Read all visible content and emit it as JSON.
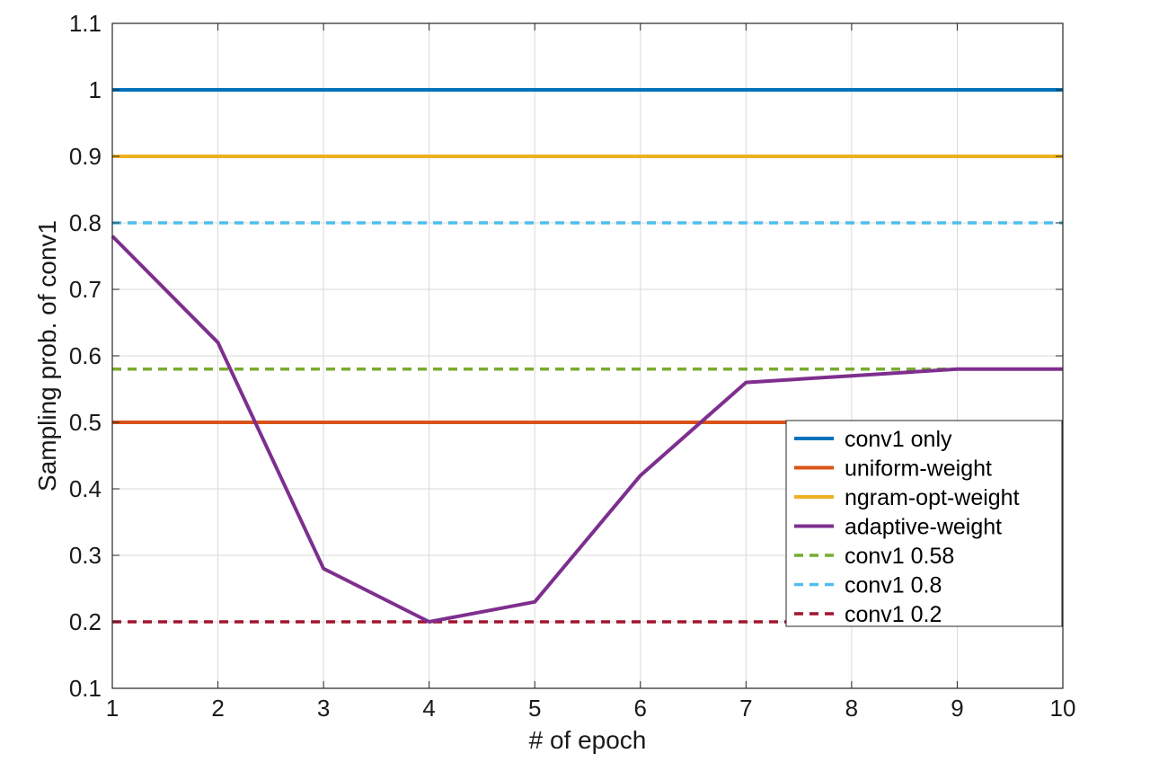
{
  "chart_data": {
    "type": "line",
    "xlabel": "# of epoch",
    "ylabel": "Sampling prob. of conv1",
    "xlim": [
      1,
      10
    ],
    "ylim": [
      0.1,
      1.1
    ],
    "xticks": [
      "1",
      "2",
      "3",
      "4",
      "5",
      "6",
      "7",
      "8",
      "9",
      "10"
    ],
    "yticks": [
      "0.1",
      "0.2",
      "0.3",
      "0.4",
      "0.5",
      "0.6",
      "0.7",
      "0.8",
      "0.9",
      "1",
      "1.1"
    ],
    "grid": true,
    "legend_position": "lower-right",
    "x": [
      1,
      2,
      3,
      4,
      5,
      6,
      7,
      8,
      9,
      10
    ],
    "series": [
      {
        "name": "conv1 only",
        "color": "#0072BD",
        "style": "solid",
        "values": [
          1,
          1,
          1,
          1,
          1,
          1,
          1,
          1,
          1,
          1
        ]
      },
      {
        "name": "uniform-weight",
        "color": "#D95319",
        "style": "solid",
        "values": [
          0.5,
          0.5,
          0.5,
          0.5,
          0.5,
          0.5,
          0.5,
          0.5,
          0.5,
          0.5
        ]
      },
      {
        "name": "ngram-opt-weight",
        "color": "#EDB120",
        "style": "solid",
        "values": [
          0.9,
          0.9,
          0.9,
          0.9,
          0.9,
          0.9,
          0.9,
          0.9,
          0.9,
          0.9
        ]
      },
      {
        "name": "adaptive-weight",
        "color": "#7E2F8E",
        "style": "solid",
        "values": [
          0.78,
          0.62,
          0.28,
          0.2,
          0.23,
          0.42,
          0.56,
          0.57,
          0.58,
          0.58
        ]
      },
      {
        "name": "conv1 0.58",
        "color": "#77AC30",
        "style": "dashed",
        "values": [
          0.58,
          0.58,
          0.58,
          0.58,
          0.58,
          0.58,
          0.58,
          0.58,
          0.58,
          0.58
        ]
      },
      {
        "name": "conv1 0.8",
        "color": "#4DBEEE",
        "style": "dashed",
        "values": [
          0.8,
          0.8,
          0.8,
          0.8,
          0.8,
          0.8,
          0.8,
          0.8,
          0.8,
          0.8
        ]
      },
      {
        "name": "conv1 0.2",
        "color": "#A2142F",
        "style": "dashed",
        "values": [
          0.2,
          0.2,
          0.2,
          0.2,
          0.2,
          0.2,
          0.2,
          0.2,
          0.2,
          0.2
        ]
      }
    ]
  }
}
